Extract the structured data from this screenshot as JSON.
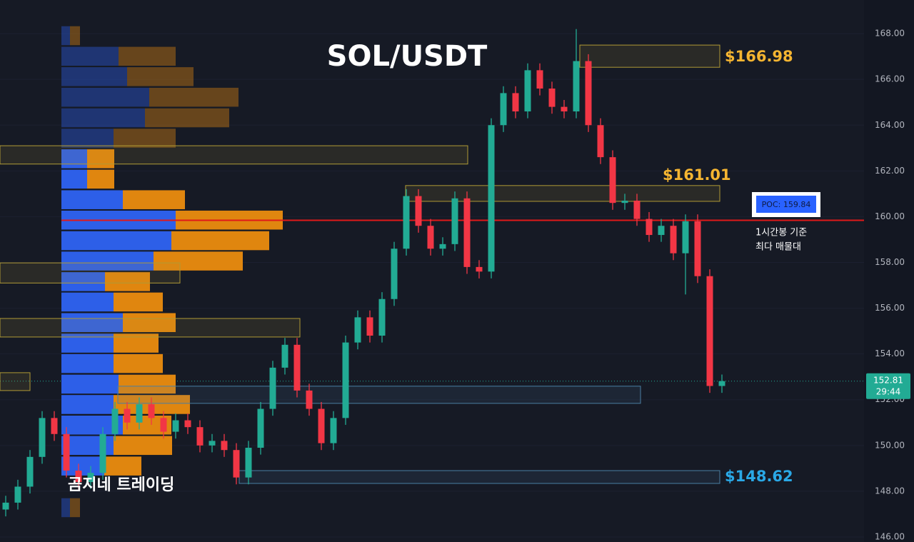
{
  "chart_data": {
    "type": "candlestick",
    "title": "SOL/USDT",
    "watermark": "곰지네 트레이딩",
    "up_color": "#22ab94",
    "down_color": "#f23645",
    "ylim": [
      145.78,
      169.47
    ],
    "yticks": [
      {
        "value": 146,
        "label": "146.00"
      },
      {
        "value": 148,
        "label": "148.00"
      },
      {
        "value": 150,
        "label": "150.00"
      },
      {
        "value": 152,
        "label": "152.00"
      },
      {
        "value": 154,
        "label": "154.00"
      },
      {
        "value": 156,
        "label": "156.00"
      },
      {
        "value": 158,
        "label": "158.00"
      },
      {
        "value": 160,
        "label": "160.00"
      },
      {
        "value": 162,
        "label": "162.00"
      },
      {
        "value": 164,
        "label": "164.00"
      },
      {
        "value": 166,
        "label": "166.00"
      },
      {
        "value": 168,
        "label": "168.00"
      }
    ],
    "grid": true,
    "open": [
      147.2,
      147.5,
      148.2,
      149.5,
      151.2,
      150.5,
      148.9,
      148.4,
      148.8,
      150.5,
      151.6,
      151.0,
      151.8,
      151.2,
      150.6,
      151.1,
      150.8,
      150.0,
      150.2,
      149.8,
      148.6,
      149.9,
      151.6,
      153.4,
      154.4,
      152.4,
      151.6,
      150.1,
      151.2,
      154.5,
      155.6,
      154.8,
      156.4,
      158.6,
      160.9,
      159.6,
      158.6,
      158.8,
      160.8,
      157.8,
      157.6,
      164.0,
      165.4,
      164.6,
      166.4,
      165.6,
      164.8,
      164.6,
      166.8,
      164.0,
      162.6,
      160.6,
      160.7,
      159.9,
      159.2,
      159.6,
      158.4,
      159.8,
      157.4,
      152.6
    ],
    "high": [
      147.8,
      148.5,
      149.8,
      151.5,
      151.5,
      150.8,
      149.2,
      149.1,
      150.8,
      151.9,
      151.9,
      152.1,
      152.1,
      151.5,
      151.4,
      151.4,
      151.1,
      150.5,
      150.5,
      150.1,
      150.2,
      151.9,
      153.7,
      154.7,
      154.7,
      152.7,
      151.9,
      151.5,
      154.8,
      155.9,
      155.9,
      156.7,
      158.9,
      161.2,
      161.2,
      159.9,
      159.1,
      161.1,
      161.1,
      158.1,
      164.3,
      165.7,
      165.7,
      166.7,
      166.7,
      165.9,
      165.1,
      168.2,
      167.1,
      164.3,
      162.9,
      161.0,
      161.0,
      160.2,
      159.9,
      159.9,
      160.1,
      160.1,
      157.7,
      153.1
    ],
    "low": [
      146.9,
      147.2,
      147.9,
      149.2,
      150.2,
      148.6,
      148.1,
      148.1,
      148.5,
      150.2,
      150.7,
      150.7,
      150.9,
      150.3,
      150.3,
      150.5,
      149.7,
      149.7,
      149.5,
      148.3,
      148.3,
      149.6,
      151.3,
      153.1,
      152.1,
      151.3,
      149.8,
      149.8,
      150.9,
      154.2,
      154.5,
      154.5,
      156.1,
      158.3,
      159.3,
      158.3,
      158.3,
      158.5,
      157.5,
      157.3,
      157.3,
      163.7,
      164.3,
      164.3,
      165.3,
      164.5,
      164.3,
      164.3,
      163.7,
      162.3,
      160.3,
      160.3,
      159.6,
      158.9,
      158.9,
      158.1,
      156.6,
      157.1,
      152.3,
      152.3
    ],
    "close": [
      147.5,
      148.2,
      149.5,
      151.2,
      150.5,
      148.9,
      148.4,
      148.8,
      150.5,
      151.6,
      151.0,
      151.8,
      151.2,
      150.6,
      151.1,
      150.8,
      150.0,
      150.2,
      149.8,
      148.6,
      149.9,
      151.6,
      153.4,
      154.4,
      152.4,
      151.6,
      150.1,
      151.2,
      154.5,
      155.6,
      154.8,
      156.4,
      158.6,
      160.9,
      159.6,
      158.6,
      158.8,
      160.8,
      157.8,
      157.6,
      164.0,
      165.4,
      164.6,
      166.4,
      165.6,
      164.8,
      164.6,
      166.8,
      164.0,
      162.6,
      160.6,
      160.7,
      159.9,
      159.2,
      159.6,
      158.4,
      159.8,
      157.4,
      152.6,
      152.81
    ],
    "volume_profile": {
      "prices": [
        167.91,
        167.01,
        166.12,
        165.22,
        164.32,
        163.43,
        162.53,
        161.64,
        160.74,
        159.85,
        158.95,
        158.06,
        157.16,
        156.27,
        155.37,
        154.47,
        153.58,
        152.68,
        151.79,
        150.89,
        150.0,
        149.1,
        147.28
      ],
      "buy": [
        12,
        80,
        92,
        123,
        117,
        73,
        36,
        36,
        86,
        160,
        154,
        129,
        61,
        73,
        86,
        73,
        73,
        80,
        73,
        86,
        73,
        60,
        12
      ],
      "sell": [
        14,
        80,
        93,
        125,
        118,
        87,
        38,
        38,
        87,
        150,
        137,
        125,
        63,
        69,
        74,
        63,
        69,
        80,
        107,
        68,
        82,
        52,
        14
      ],
      "buy_color": "#2d5fe8",
      "sell_color": "#e0860f",
      "value_area": [
        148.5,
        162.9
      ]
    },
    "zones": [
      {
        "low": 166.53,
        "high": 167.5,
        "color": "#b09a35",
        "label": {
          "value": 166.98,
          "label": "$166.98"
        },
        "label_color": "#f5b531"
      },
      {
        "low": 162.3,
        "high": 163.1,
        "color": "#b09a35"
      },
      {
        "low": 160.67,
        "high": 161.36,
        "color": "#b09a35",
        "label": {
          "value": 161.01,
          "label": "$161.01"
        },
        "label_color": "#f5b531"
      },
      {
        "low": 157.1,
        "high": 157.98,
        "color": "#b09a35"
      },
      {
        "low": 154.74,
        "high": 155.55,
        "color": "#b09a35"
      },
      {
        "low": 152.4,
        "high": 153.18,
        "color": "#b09a35"
      },
      {
        "low": 151.84,
        "high": 152.59,
        "color": "#4a7fa3"
      },
      {
        "low": 148.34,
        "high": 148.9,
        "color": "#4a7fa3",
        "label": {
          "value": 148.62,
          "label": "$148.62"
        },
        "label_color": "#2aa8e6"
      }
    ],
    "poc": {
      "value": 159.84,
      "label": "POC: 159.84",
      "color": "#e01919",
      "note": [
        "1시간봉 기준",
        "최다 매물대"
      ]
    },
    "last_price": {
      "value": 152.81,
      "label": "152.81",
      "countdown": "29:44"
    }
  }
}
